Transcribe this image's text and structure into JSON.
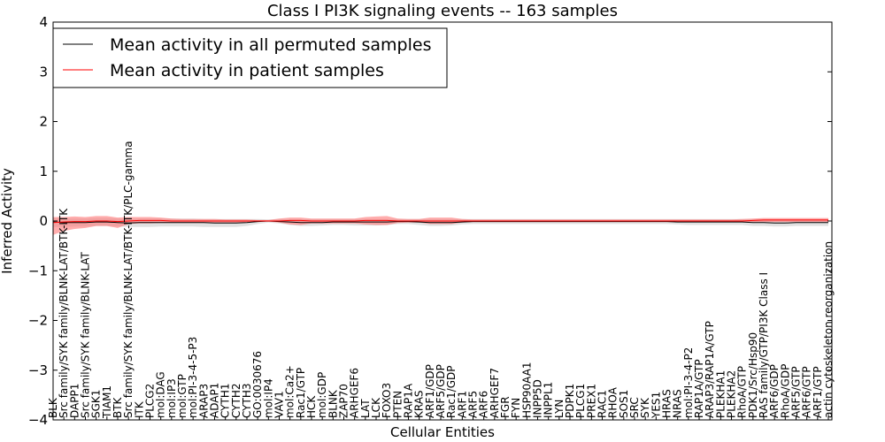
{
  "chart_data": {
    "type": "line",
    "title": "Class I PI3K signaling events -- 163 samples",
    "xlabel": "Cellular Entities",
    "ylabel": "Inferred Activity",
    "ylim": [
      -4,
      4
    ],
    "yticks": [
      -4,
      -3,
      -2,
      -1,
      0,
      1,
      2,
      3,
      4
    ],
    "grid": false,
    "legend_position": "top-left",
    "categories": [
      "BLK",
      "Src family/SYK family/BLNK-LAT/BTK-ITK",
      "DAPP1",
      "Src family/SYK family/BLNK-LAT",
      "SGK1",
      "TIAM1",
      "BTK",
      "Src family/SYK family/BLNK-LAT/BTK-ITK/PLC-gamma",
      "ITK",
      "PLCG2",
      "mol:DAG",
      "mol:IP3",
      "mol:GTP",
      "mol:PI-3-4-5-P3",
      "ARAP3",
      "ADAP1",
      "CYTH1",
      "CYTH2",
      "CYTH3",
      "GO:0030676",
      "mol:IP4",
      "VAV1",
      "mol:Ca2+",
      "Rac1/GTP",
      "HCK",
      "mol:GDP",
      "BLNK",
      "ZAP70",
      "ARHGEF6",
      "LAT",
      "LCK",
      "FOXO3",
      "PTEN",
      "RAP1A",
      "KRAS",
      "ARF1/GDP",
      "ARF5/GDP",
      "Rac1/GDP",
      "ARF1",
      "ARF5",
      "ARF6",
      "ARHGEF7",
      "FGR",
      "FYN",
      "HSP90AA1",
      "INPP5D",
      "INPPL1",
      "LYN",
      "PDPK1",
      "PLCG1",
      "PREX1",
      "RAC1",
      "RHOA",
      "SOS1",
      "SRC",
      "SYK",
      "YES1",
      "HRAS",
      "NRAS",
      "mol:PI-3-4-P2",
      "RAP1A/GTP",
      "ARAP3/RAP1A/GTP",
      "PLEKHA1",
      "PLEKHA2",
      "RhoA/GTP",
      "PDK1/Src/Hsp90",
      "RAS family/GTP/PI3K Class I",
      "ARF6/GDP",
      "RhoA/GDP",
      "ARF5/GTP",
      "ARF6/GTP",
      "ARF1/GTP",
      "actin cytoskeleton reorganization"
    ],
    "series": [
      {
        "name": "Mean activity in all permuted samples",
        "color": "#000000",
        "values": [
          -0.02,
          -0.03,
          -0.03,
          -0.03,
          -0.02,
          -0.02,
          -0.03,
          -0.04,
          -0.03,
          -0.03,
          -0.03,
          -0.03,
          -0.03,
          -0.03,
          -0.03,
          -0.04,
          -0.04,
          -0.04,
          -0.03,
          -0.01,
          0.0,
          -0.01,
          -0.02,
          -0.03,
          -0.03,
          -0.03,
          -0.02,
          -0.02,
          -0.02,
          -0.02,
          -0.02,
          -0.02,
          -0.01,
          -0.01,
          -0.02,
          -0.03,
          -0.03,
          -0.03,
          -0.02,
          -0.01,
          -0.01,
          -0.01,
          -0.01,
          -0.01,
          -0.01,
          -0.01,
          -0.01,
          -0.01,
          -0.01,
          -0.01,
          -0.01,
          -0.01,
          -0.01,
          -0.01,
          -0.01,
          -0.01,
          -0.01,
          -0.01,
          -0.02,
          -0.02,
          -0.02,
          -0.02,
          -0.02,
          -0.02,
          -0.02,
          -0.03,
          -0.03,
          -0.04,
          -0.04,
          -0.03,
          -0.03,
          -0.03,
          -0.03
        ],
        "band_low": [
          -0.12,
          -0.12,
          -0.11,
          -0.11,
          -0.1,
          -0.1,
          -0.11,
          -0.12,
          -0.12,
          -0.12,
          -0.11,
          -0.11,
          -0.11,
          -0.11,
          -0.12,
          -0.12,
          -0.12,
          -0.12,
          -0.1,
          -0.06,
          -0.03,
          -0.05,
          -0.08,
          -0.1,
          -0.1,
          -0.09,
          -0.08,
          -0.08,
          -0.09,
          -0.09,
          -0.09,
          -0.08,
          -0.06,
          -0.06,
          -0.08,
          -0.1,
          -0.1,
          -0.09,
          -0.07,
          -0.06,
          -0.06,
          -0.06,
          -0.06,
          -0.06,
          -0.06,
          -0.06,
          -0.06,
          -0.06,
          -0.06,
          -0.06,
          -0.06,
          -0.06,
          -0.06,
          -0.06,
          -0.06,
          -0.06,
          -0.06,
          -0.06,
          -0.07,
          -0.08,
          -0.08,
          -0.08,
          -0.08,
          -0.08,
          -0.08,
          -0.1,
          -0.1,
          -0.11,
          -0.11,
          -0.1,
          -0.1,
          -0.1,
          -0.1
        ],
        "band_high": [
          0.06,
          0.05,
          0.05,
          0.05,
          0.06,
          0.06,
          0.05,
          0.04,
          0.05,
          0.05,
          0.05,
          0.05,
          0.05,
          0.05,
          0.04,
          0.04,
          0.04,
          0.04,
          0.04,
          0.04,
          0.03,
          0.04,
          0.04,
          0.04,
          0.04,
          0.04,
          0.04,
          0.04,
          0.04,
          0.04,
          0.04,
          0.04,
          0.04,
          0.04,
          0.04,
          0.04,
          0.04,
          0.04,
          0.04,
          0.04,
          0.04,
          0.04,
          0.04,
          0.04,
          0.04,
          0.04,
          0.04,
          0.04,
          0.04,
          0.04,
          0.04,
          0.04,
          0.04,
          0.04,
          0.04,
          0.04,
          0.04,
          0.04,
          0.04,
          0.04,
          0.04,
          0.04,
          0.04,
          0.04,
          0.04,
          0.04,
          0.04,
          0.04,
          0.04,
          0.04,
          0.04,
          0.04,
          0.04
        ],
        "band_color": "#c8c8c8"
      },
      {
        "name": "Mean activity in patient samples",
        "color": "#ff0000",
        "values": [
          -0.03,
          -0.02,
          -0.01,
          -0.01,
          0.0,
          0.0,
          -0.01,
          0.0,
          0.01,
          0.01,
          0.01,
          0.0,
          0.0,
          0.0,
          0.0,
          0.0,
          0.0,
          0.0,
          0.0,
          0.0,
          0.0,
          0.0,
          0.01,
          0.01,
          0.0,
          0.0,
          0.0,
          0.0,
          0.0,
          0.01,
          0.01,
          0.01,
          0.0,
          0.0,
          0.0,
          0.0,
          0.0,
          0.0,
          0.0,
          0.0,
          0.0,
          0.0,
          0.0,
          0.0,
          0.0,
          0.0,
          0.0,
          0.0,
          0.0,
          0.0,
          0.0,
          0.0,
          0.0,
          0.0,
          0.0,
          0.0,
          0.0,
          0.0,
          0.0,
          0.0,
          0.0,
          0.0,
          0.0,
          0.0,
          0.0,
          0.01,
          0.02,
          0.02,
          0.02,
          0.02,
          0.02,
          0.02,
          0.02
        ],
        "band_low": [
          -0.28,
          -0.2,
          -0.16,
          -0.14,
          -0.1,
          -0.1,
          -0.14,
          -0.06,
          -0.05,
          -0.05,
          -0.04,
          -0.04,
          -0.04,
          -0.04,
          -0.04,
          -0.04,
          -0.04,
          -0.04,
          -0.03,
          -0.02,
          -0.01,
          -0.03,
          -0.07,
          -0.08,
          -0.05,
          -0.05,
          -0.05,
          -0.05,
          -0.05,
          -0.07,
          -0.08,
          -0.08,
          -0.04,
          -0.03,
          -0.03,
          -0.06,
          -0.06,
          -0.06,
          -0.03,
          -0.02,
          -0.02,
          -0.02,
          -0.02,
          -0.02,
          -0.02,
          -0.02,
          -0.02,
          -0.02,
          -0.02,
          -0.02,
          -0.02,
          -0.02,
          -0.02,
          -0.02,
          -0.02,
          -0.02,
          -0.02,
          -0.02,
          -0.02,
          -0.02,
          -0.02,
          -0.02,
          -0.02,
          -0.02,
          -0.02,
          -0.02,
          -0.02,
          -0.02,
          -0.02,
          -0.02,
          -0.02,
          -0.02,
          -0.02
        ],
        "band_high": [
          0.08,
          0.08,
          0.09,
          0.08,
          0.1,
          0.1,
          0.07,
          0.08,
          0.08,
          0.08,
          0.07,
          0.05,
          0.04,
          0.04,
          0.04,
          0.04,
          0.03,
          0.03,
          0.03,
          0.02,
          0.02,
          0.05,
          0.07,
          0.07,
          0.05,
          0.05,
          0.05,
          0.05,
          0.05,
          0.08,
          0.09,
          0.1,
          0.05,
          0.04,
          0.04,
          0.07,
          0.07,
          0.07,
          0.04,
          0.03,
          0.03,
          0.03,
          0.03,
          0.03,
          0.03,
          0.03,
          0.03,
          0.03,
          0.03,
          0.03,
          0.03,
          0.03,
          0.03,
          0.03,
          0.03,
          0.03,
          0.03,
          0.03,
          0.03,
          0.03,
          0.03,
          0.03,
          0.03,
          0.03,
          0.04,
          0.05,
          0.06,
          0.06,
          0.06,
          0.06,
          0.06,
          0.06,
          0.06
        ],
        "band_color": "#ff7777"
      }
    ]
  }
}
